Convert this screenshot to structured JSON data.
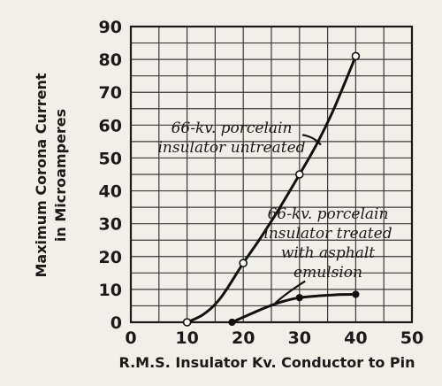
{
  "chart_data": {
    "type": "line",
    "title": "",
    "xlabel": "R.M.S. Insulator Kv. Conductor to Pin",
    "ylabel": "Maximum Corona Current in Microamperes",
    "ylabel_lines": [
      "Maximum Corona Current",
      "in Microamperes"
    ],
    "xlim": [
      0,
      50
    ],
    "ylim": [
      0,
      90
    ],
    "x_ticks": [
      0,
      10,
      20,
      30,
      40,
      50
    ],
    "y_ticks": [
      0,
      10,
      20,
      30,
      40,
      50,
      60,
      70,
      80,
      90
    ],
    "x_tick_labels": [
      "0",
      "10",
      "20",
      "30",
      "40",
      "50"
    ],
    "y_tick_labels": [
      "0",
      "10",
      "20",
      "30",
      "40",
      "50",
      "60",
      "70",
      "80",
      "90"
    ],
    "grid": true,
    "x_minor_step": 5,
    "y_minor_step": 5,
    "series": [
      {
        "points": [
          [
            10,
            0
          ],
          [
            20,
            18
          ],
          [
            30,
            45
          ],
          [
            40,
            81
          ]
        ],
        "curve": [
          [
            10,
            0
          ],
          [
            13,
            2.5
          ],
          [
            16,
            7.5
          ],
          [
            20,
            18
          ],
          [
            23,
            25.5
          ],
          [
            26,
            33.5
          ],
          [
            30,
            45
          ],
          [
            33,
            54
          ],
          [
            36,
            64.5
          ],
          [
            40,
            81
          ]
        ],
        "marker": "open-circle"
      },
      {
        "points": [
          [
            18,
            0
          ],
          [
            30,
            7.5
          ],
          [
            40,
            8.5
          ]
        ],
        "curve": [
          [
            18,
            0
          ],
          [
            21,
            2.3
          ],
          [
            24,
            4.5
          ],
          [
            27,
            6.3
          ],
          [
            30,
            7.5
          ],
          [
            34,
            8.1
          ],
          [
            37,
            8.4
          ],
          [
            40,
            8.5
          ]
        ],
        "marker": "filled-circle"
      }
    ],
    "annotations": [
      {
        "lines": [
          "66-kv. porcelain",
          "insulator untreated"
        ],
        "leader_from": [
          30.5,
          57
        ],
        "leader_to": [
          33.8,
          54
        ]
      },
      {
        "lines": [
          "66-kv. porcelain",
          "insulator treated",
          "with asphalt",
          "emulsion"
        ],
        "leader_from": [
          31,
          12.5
        ],
        "leader_to": [
          25.5,
          5.5
        ]
      }
    ]
  }
}
